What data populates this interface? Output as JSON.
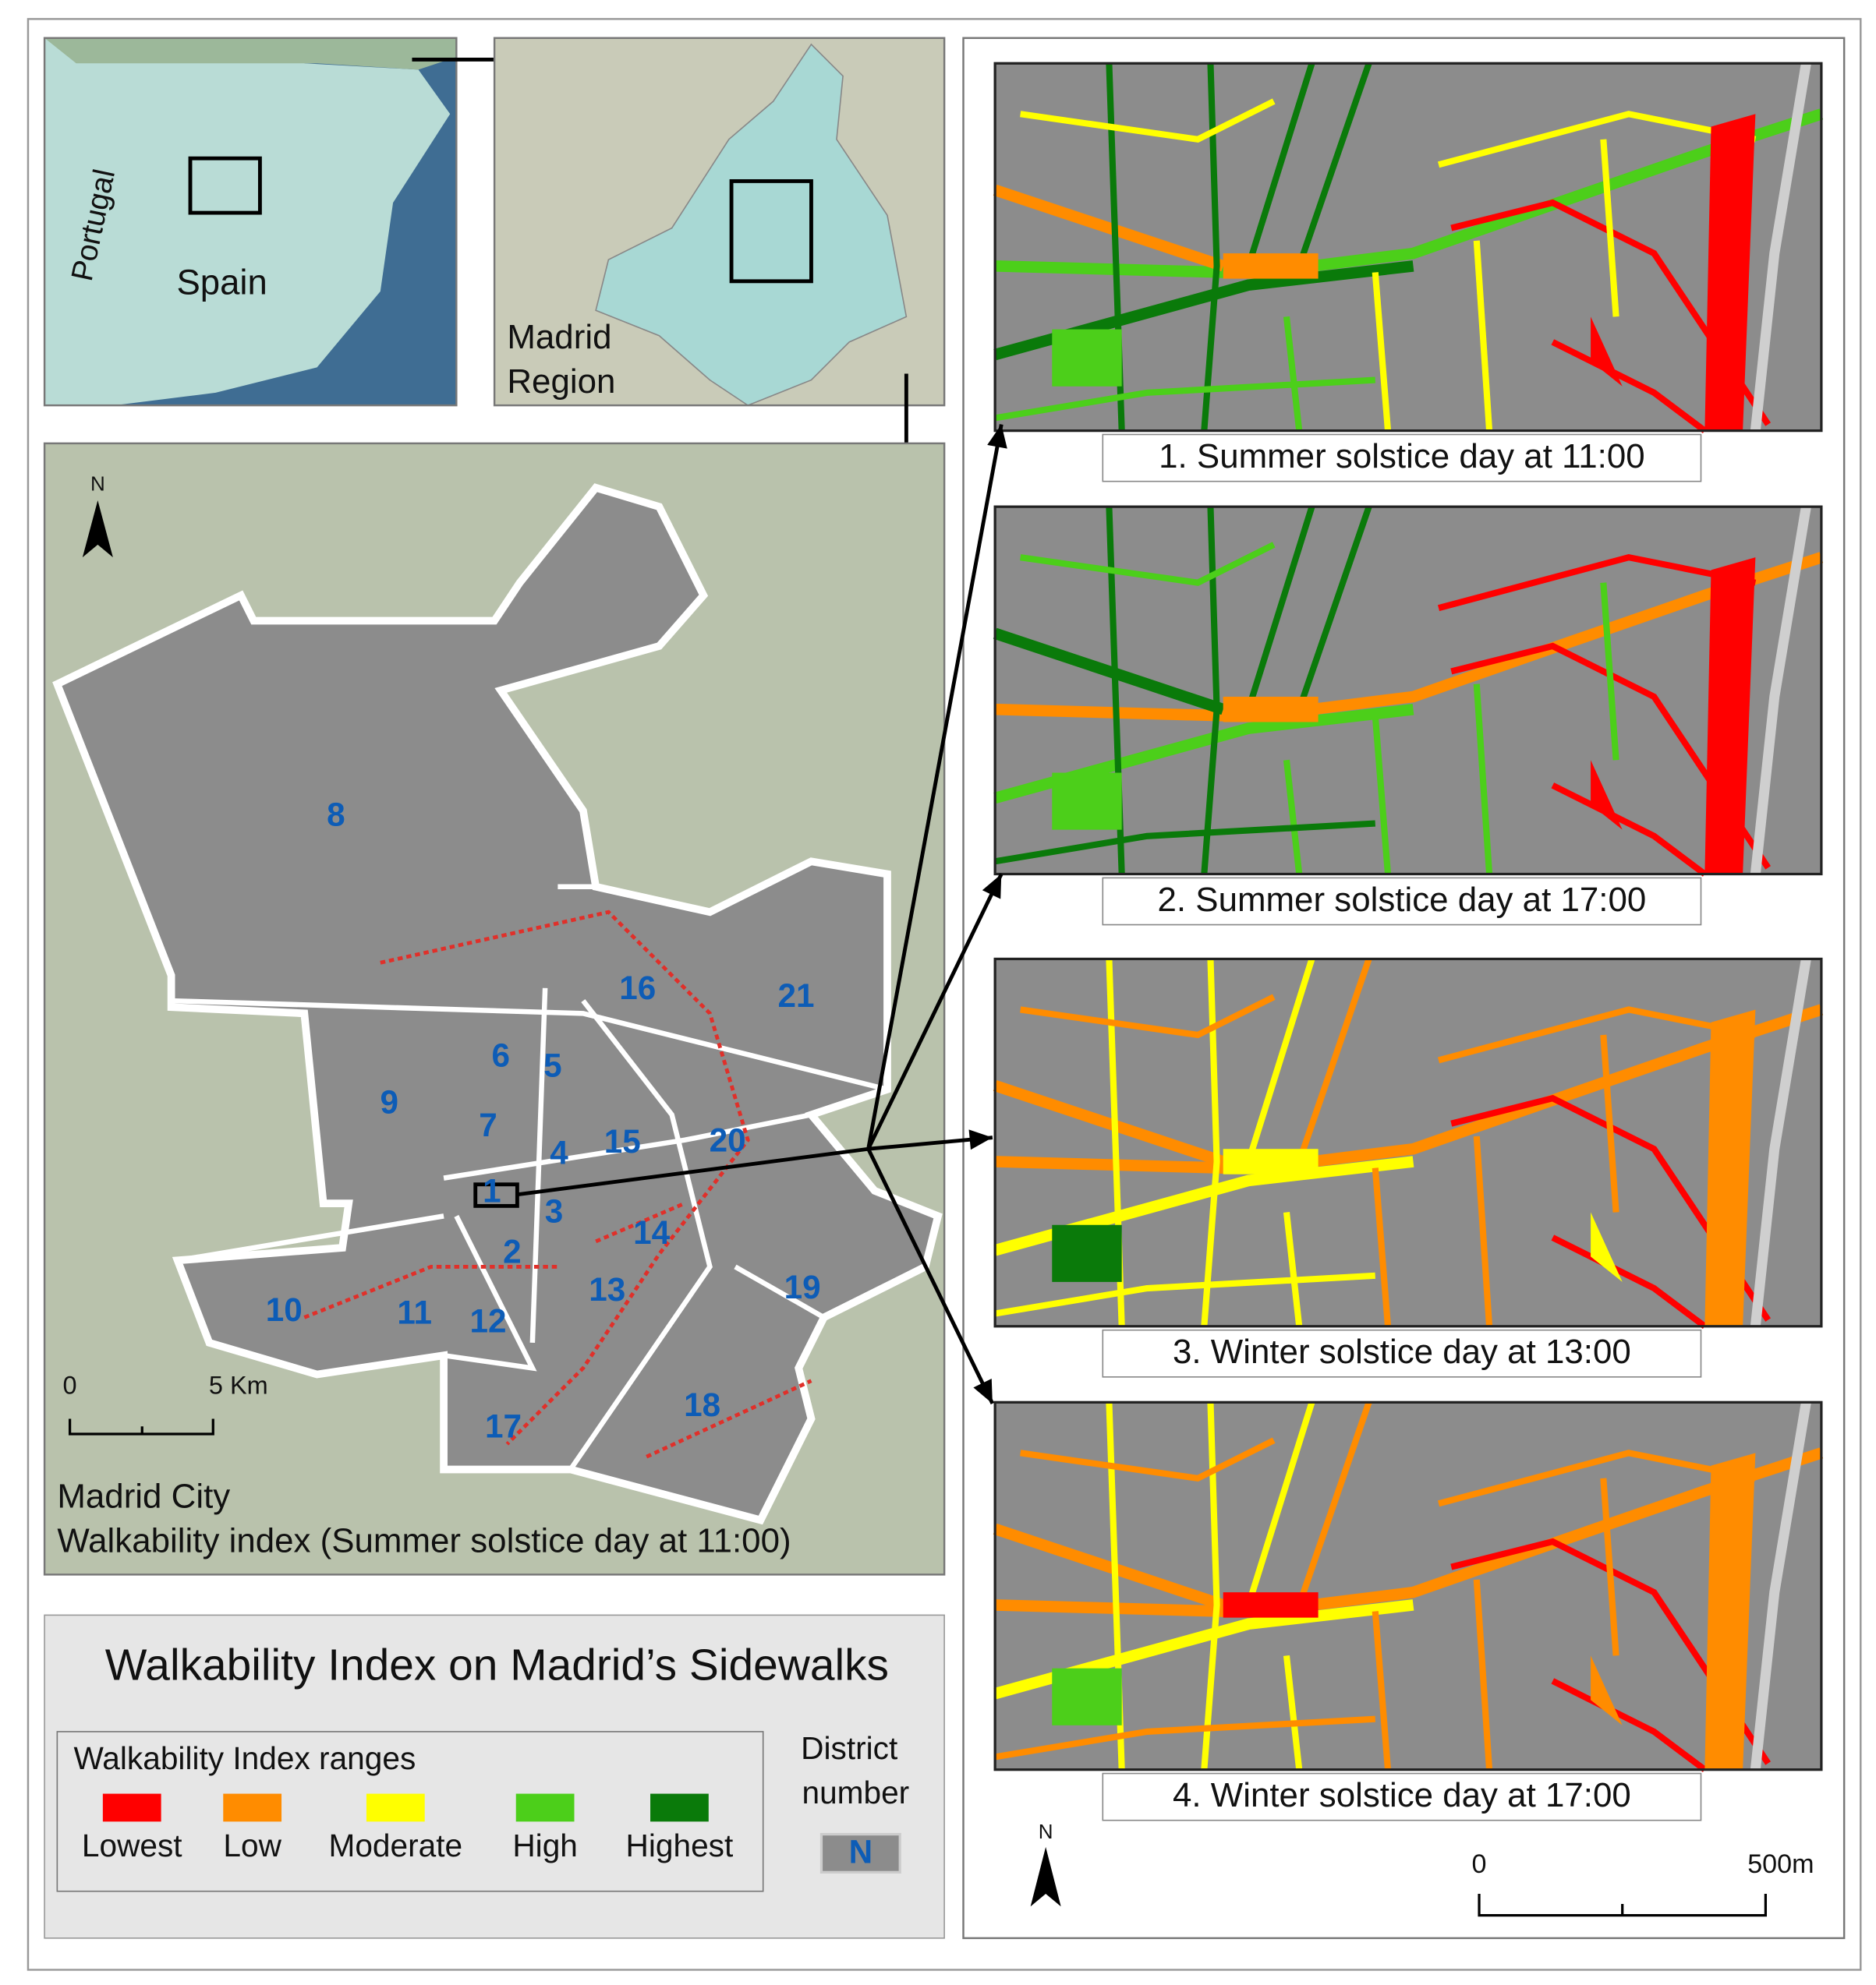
{
  "inset_spain": {
    "labels": [
      "Portugal",
      "Spain"
    ]
  },
  "inset_region": {
    "label_lines": [
      "Madrid",
      "Region"
    ]
  },
  "city_map": {
    "caption_lines": [
      "Madrid City",
      "Walkability index (Summer solstice day at 11:00)"
    ],
    "north": "N",
    "scale": [
      "0",
      "5 Km"
    ],
    "districts": [
      "8",
      "16",
      "21",
      "6",
      "5",
      "9",
      "7",
      "15",
      "20",
      "4",
      "1",
      "3",
      "14",
      "2",
      "19",
      "10",
      "11",
      "13",
      "12",
      "18",
      "17"
    ]
  },
  "panels": {
    "captions": [
      "1. Summer solstice day at 11:00",
      "2. Summer solstice day at 17:00",
      "3. Winter solstice day at 13:00",
      "4. Winter solstice day at 17:00"
    ],
    "north": "N",
    "scale": [
      "0",
      "500m"
    ]
  },
  "legend": {
    "title": "Walkability Index on Madrid’s Sidewalks",
    "ranges_title": "Walkability Index ranges",
    "ranges": [
      {
        "label": "Lowest",
        "color": "#ff0000"
      },
      {
        "label": "Low",
        "color": "#ff8c00"
      },
      {
        "label": "Moderate",
        "color": "#ffff00"
      },
      {
        "label": "High",
        "color": "#4ccf1a"
      },
      {
        "label": "Highest",
        "color": "#0a7a0a"
      }
    ],
    "district_title_lines": [
      "District",
      "number"
    ],
    "district_sample": "N"
  }
}
